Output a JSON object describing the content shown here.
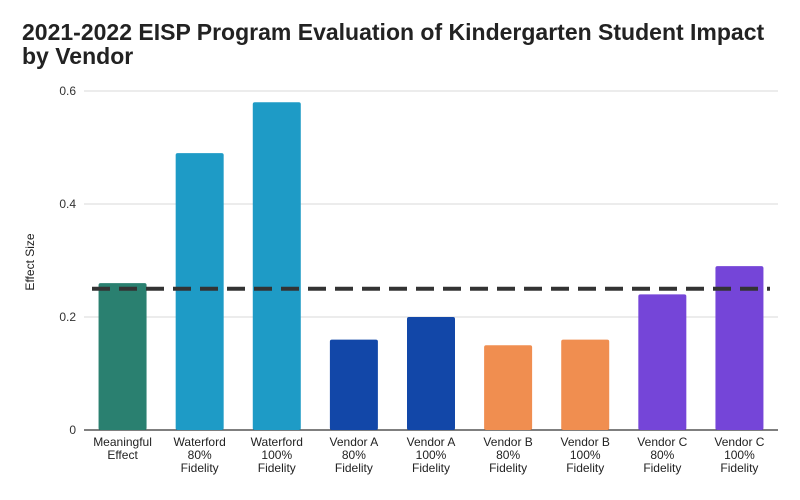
{
  "chart_data": {
    "type": "bar",
    "title": "2021-2022 EISP Program Evaluation of Kindergarten Student Impact by Vendor",
    "xlabel": "",
    "ylabel": "Effect Size",
    "ylim": [
      0,
      0.6
    ],
    "yticks": [
      "0",
      "0.2",
      "0.4",
      "0.6"
    ],
    "grid": true,
    "categories": [
      [
        "Meaningful",
        "Effect"
      ],
      [
        "Waterford",
        "80%",
        "Fidelity"
      ],
      [
        "Waterford",
        "100%",
        "Fidelity"
      ],
      [
        "Vendor A",
        "80%",
        "Fidelity"
      ],
      [
        "Vendor A",
        "100%",
        "Fidelity"
      ],
      [
        "Vendor B",
        "80%",
        "Fidelity"
      ],
      [
        "Vendor B",
        "100%",
        "Fidelity"
      ],
      [
        "Vendor C",
        "80%",
        "Fidelity"
      ],
      [
        "Vendor C",
        "100%",
        "Fidelity"
      ]
    ],
    "values": [
      0.26,
      0.49,
      0.58,
      0.16,
      0.2,
      0.15,
      0.16,
      0.24,
      0.29
    ],
    "colors": [
      "#2a8070",
      "#1e9bc6",
      "#1e9bc6",
      "#1247a8",
      "#1247a8",
      "#f08e50",
      "#f08e50",
      "#7545d8",
      "#7545d8"
    ],
    "reference_line": {
      "value": 0.25,
      "style": "dashed",
      "color": "#333333"
    }
  }
}
